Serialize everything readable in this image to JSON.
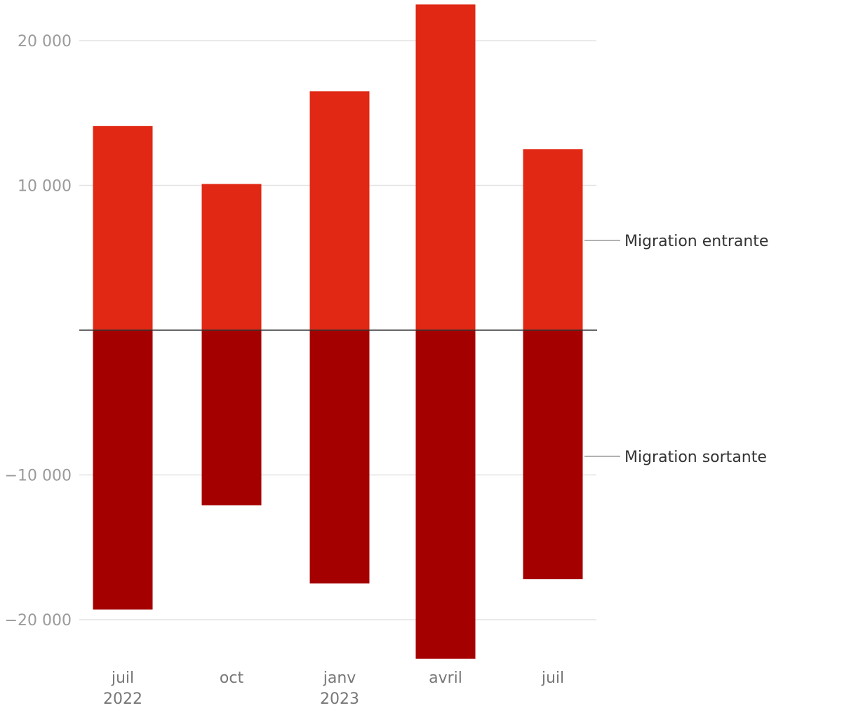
{
  "chart_data": {
    "type": "bar",
    "stacked": "diverging",
    "categories": [
      "juil 2022",
      "oct",
      "janv 2023",
      "avril",
      "juil"
    ],
    "category_lines": [
      [
        "juil",
        "2022"
      ],
      [
        "oct"
      ],
      [
        "janv",
        "2023"
      ],
      [
        "avril"
      ],
      [
        "juil"
      ]
    ],
    "series": [
      {
        "name": "Migration entrante",
        "color": "#e02814",
        "values": [
          14100,
          10100,
          16500,
          22500,
          12500
        ]
      },
      {
        "name": "Migration sortante",
        "color": "#a50000",
        "values": [
          -19300,
          -12100,
          -17500,
          -22700,
          -17200
        ]
      }
    ],
    "y_ticks": [
      20000,
      10000,
      -10000,
      -20000
    ],
    "y_tick_labels": [
      "20 000",
      "10 000",
      "−10 000",
      "−20 000"
    ],
    "ylim": [
      -23000,
      23000
    ],
    "title": "",
    "xlabel": "",
    "ylabel": "",
    "legend": "right, direct labels"
  }
}
